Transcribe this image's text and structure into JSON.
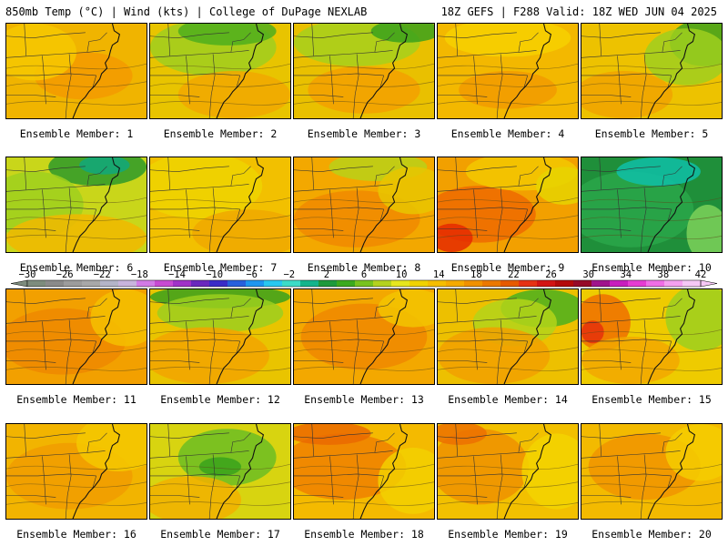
{
  "header": {
    "left": "850mb Temp (°C) | Wind (kts) | College of DuPage NEXLAB",
    "right": "18Z GEFS | F288 Valid: 18Z WED JUN 04 2025"
  },
  "members": [
    {
      "label": "Ensemble Member: 1",
      "base": "#f0b400",
      "blobs": [
        [
          "#f39a00",
          0.55,
          0.55,
          0.35,
          0.25
        ],
        [
          "#f6c800",
          0.2,
          0.3,
          0.3,
          0.3
        ]
      ]
    },
    {
      "label": "Ensemble Member: 2",
      "base": "#e8c400",
      "blobs": [
        [
          "#9fcf1e",
          0.45,
          0.25,
          0.45,
          0.3
        ],
        [
          "#4fae1d",
          0.55,
          0.08,
          0.35,
          0.15
        ],
        [
          "#f1a800",
          0.6,
          0.75,
          0.4,
          0.25
        ]
      ]
    },
    {
      "label": "Ensemble Member: 3",
      "base": "#e9c000",
      "blobs": [
        [
          "#a6d01c",
          0.45,
          0.2,
          0.45,
          0.25
        ],
        [
          "#3aa11c",
          0.8,
          0.08,
          0.25,
          0.12
        ],
        [
          "#f3a000",
          0.5,
          0.7,
          0.4,
          0.25
        ]
      ]
    },
    {
      "label": "Ensemble Member: 4",
      "base": "#f3b800",
      "blobs": [
        [
          "#f6d000",
          0.5,
          0.15,
          0.45,
          0.2
        ],
        [
          "#f19a00",
          0.5,
          0.7,
          0.35,
          0.2
        ]
      ]
    },
    {
      "label": "Ensemble Member: 5",
      "base": "#edc200",
      "blobs": [
        [
          "#3ea21c",
          0.88,
          0.2,
          0.25,
          0.25
        ],
        [
          "#9fcf1e",
          0.75,
          0.35,
          0.3,
          0.3
        ],
        [
          "#f0a300",
          0.3,
          0.75,
          0.35,
          0.25
        ]
      ]
    },
    {
      "label": "Ensemble Member: 6",
      "base": "#c9d61a",
      "blobs": [
        [
          "#2e9a2a",
          0.65,
          0.1,
          0.35,
          0.2
        ],
        [
          "#10a87c",
          0.7,
          0.08,
          0.18,
          0.1
        ],
        [
          "#9fd01e",
          0.2,
          0.5,
          0.35,
          0.35
        ],
        [
          "#f1b800",
          0.5,
          0.85,
          0.5,
          0.25
        ]
      ]
    },
    {
      "label": "Ensemble Member: 7",
      "base": "#f2c000",
      "blobs": [
        [
          "#eed300",
          0.35,
          0.3,
          0.45,
          0.35
        ],
        [
          "#f0a800",
          0.7,
          0.8,
          0.4,
          0.25
        ]
      ]
    },
    {
      "label": "Ensemble Member: 8",
      "base": "#f3a800",
      "blobs": [
        [
          "#f08a00",
          0.45,
          0.65,
          0.45,
          0.3
        ],
        [
          "#b9d118",
          0.6,
          0.1,
          0.35,
          0.15
        ],
        [
          "#e8c600",
          0.85,
          0.35,
          0.25,
          0.25
        ]
      ]
    },
    {
      "label": "Ensemble Member: 9",
      "base": "#f2a000",
      "blobs": [
        [
          "#ef6a00",
          0.3,
          0.6,
          0.4,
          0.3
        ],
        [
          "#e52a00",
          0.1,
          0.85,
          0.15,
          0.15
        ],
        [
          "#f3c800",
          0.6,
          0.15,
          0.4,
          0.2
        ],
        [
          "#e6d400",
          0.9,
          0.3,
          0.2,
          0.2
        ]
      ]
    },
    {
      "label": "Ensemble Member: 10",
      "base": "#1f8f3a",
      "blobs": [
        [
          "#2aa74a",
          0.35,
          0.55,
          0.45,
          0.4
        ],
        [
          "#0fc0a8",
          0.55,
          0.15,
          0.3,
          0.15
        ],
        [
          "#7ed25a",
          0.9,
          0.8,
          0.15,
          0.3
        ]
      ]
    },
    {
      "label": "Ensemble Member: 11",
      "base": "#f2a000",
      "blobs": [
        [
          "#ef8800",
          0.4,
          0.55,
          0.45,
          0.35
        ],
        [
          "#f4c000",
          0.85,
          0.3,
          0.25,
          0.3
        ]
      ]
    },
    {
      "label": "Ensemble Member: 12",
      "base": "#e9c400",
      "blobs": [
        [
          "#3aa11c",
          0.5,
          0.08,
          0.5,
          0.12
        ],
        [
          "#9ccf1e",
          0.5,
          0.25,
          0.45,
          0.2
        ],
        [
          "#f2a400",
          0.4,
          0.7,
          0.45,
          0.3
        ]
      ]
    },
    {
      "label": "Ensemble Member: 13",
      "base": "#f3a800",
      "blobs": [
        [
          "#ef8800",
          0.5,
          0.5,
          0.45,
          0.35
        ],
        [
          "#f2c400",
          0.85,
          0.2,
          0.25,
          0.2
        ]
      ]
    },
    {
      "label": "Ensemble Member: 14",
      "base": "#edc000",
      "blobs": [
        [
          "#4ab01e",
          0.75,
          0.2,
          0.3,
          0.2
        ],
        [
          "#b3d31a",
          0.55,
          0.35,
          0.3,
          0.25
        ],
        [
          "#f1a000",
          0.4,
          0.7,
          0.4,
          0.3
        ]
      ]
    },
    {
      "label": "Ensemble Member: 15",
      "base": "#eecb00",
      "blobs": [
        [
          "#9cd01e",
          0.85,
          0.3,
          0.25,
          0.35
        ],
        [
          "#ef7000",
          0.15,
          0.35,
          0.2,
          0.3
        ],
        [
          "#e5300a",
          0.08,
          0.45,
          0.08,
          0.12
        ],
        [
          "#f2a800",
          0.35,
          0.75,
          0.35,
          0.25
        ]
      ]
    },
    {
      "label": "Ensemble Member: 16",
      "base": "#f2b400",
      "blobs": [
        [
          "#f19c00",
          0.45,
          0.55,
          0.45,
          0.35
        ],
        [
          "#f4c800",
          0.8,
          0.2,
          0.3,
          0.3
        ]
      ]
    },
    {
      "label": "Ensemble Member: 17",
      "base": "#d8d410",
      "blobs": [
        [
          "#6cbd23",
          0.55,
          0.35,
          0.35,
          0.3
        ],
        [
          "#3aa21c",
          0.5,
          0.45,
          0.15,
          0.1
        ],
        [
          "#f2b000",
          0.3,
          0.8,
          0.35,
          0.25
        ]
      ]
    },
    {
      "label": "Ensemble Member: 18",
      "base": "#f4ba00",
      "blobs": [
        [
          "#ef8000",
          0.35,
          0.45,
          0.45,
          0.35
        ],
        [
          "#ea6a00",
          0.25,
          0.1,
          0.3,
          0.12
        ],
        [
          "#f2d000",
          0.85,
          0.6,
          0.25,
          0.35
        ]
      ]
    },
    {
      "label": "Ensemble Member: 19",
      "base": "#f2c000",
      "blobs": [
        [
          "#ef9000",
          0.3,
          0.45,
          0.35,
          0.4
        ],
        [
          "#f3d400",
          0.85,
          0.5,
          0.25,
          0.4
        ],
        [
          "#ec7000",
          0.15,
          0.1,
          0.2,
          0.12
        ]
      ]
    },
    {
      "label": "Ensemble Member: 20",
      "base": "#f3ba00",
      "blobs": [
        [
          "#f09400",
          0.45,
          0.45,
          0.4,
          0.35
        ],
        [
          "#f4cc00",
          0.85,
          0.3,
          0.25,
          0.3
        ]
      ]
    }
  ],
  "colorbar": {
    "ticks": [
      "-30",
      "-26",
      "-22",
      "-18",
      "-14",
      "-10",
      "-6",
      "-2",
      "2",
      "6",
      "10",
      "14",
      "18",
      "22",
      "26",
      "30",
      "34",
      "38",
      "42"
    ],
    "colors": [
      "#7d8c7d",
      "#8a8a8a",
      "#9c9c9c",
      "#a8a8a8",
      "#b4b4c8",
      "#c8b4dc",
      "#d27ae6",
      "#c84ad2",
      "#a032c8",
      "#6a28be",
      "#3a2cc8",
      "#2860dc",
      "#1e96f0",
      "#28c8f0",
      "#3cdcc8",
      "#14b48c",
      "#1e9a3c",
      "#3caa1e",
      "#78c31e",
      "#b4d21e",
      "#e6e61e",
      "#f0d200",
      "#f5be00",
      "#f5aa00",
      "#f09100",
      "#eb7800",
      "#e65a00",
      "#e63214",
      "#d21414",
      "#b40a0a",
      "#960a28",
      "#a0148c",
      "#c81ebe",
      "#e63cd2",
      "#f06ee6",
      "#f5a0f0",
      "#f5c8f5"
    ]
  }
}
